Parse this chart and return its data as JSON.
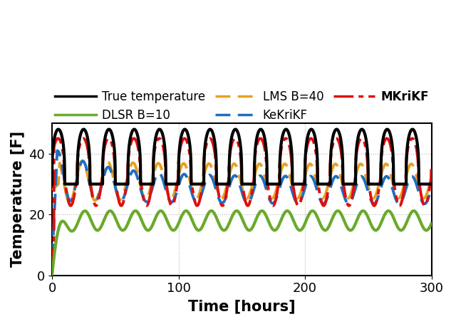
{
  "xlabel": "Time [hours]",
  "ylabel": "Temperature [F]",
  "xlim": [
    0,
    300
  ],
  "ylim": [
    0,
    50
  ],
  "yticks": [
    0,
    20,
    40
  ],
  "xticks": [
    0,
    100,
    200,
    300
  ],
  "true_color": "#000000",
  "dlsr_color": "#6aaa2a",
  "lms_color": "#e8a020",
  "kekrikf_color": "#1e6fc0",
  "mkrikf_color": "#dd1010",
  "period": 20,
  "n_points": 6001,
  "lw_true": 3.0,
  "lw_dlsr": 3.0,
  "lw_lms": 2.8,
  "lw_kekrikf": 2.8,
  "lw_mkrikf": 2.8,
  "legend_fontsize": 12,
  "tick_fontsize": 13,
  "label_fontsize": 15
}
